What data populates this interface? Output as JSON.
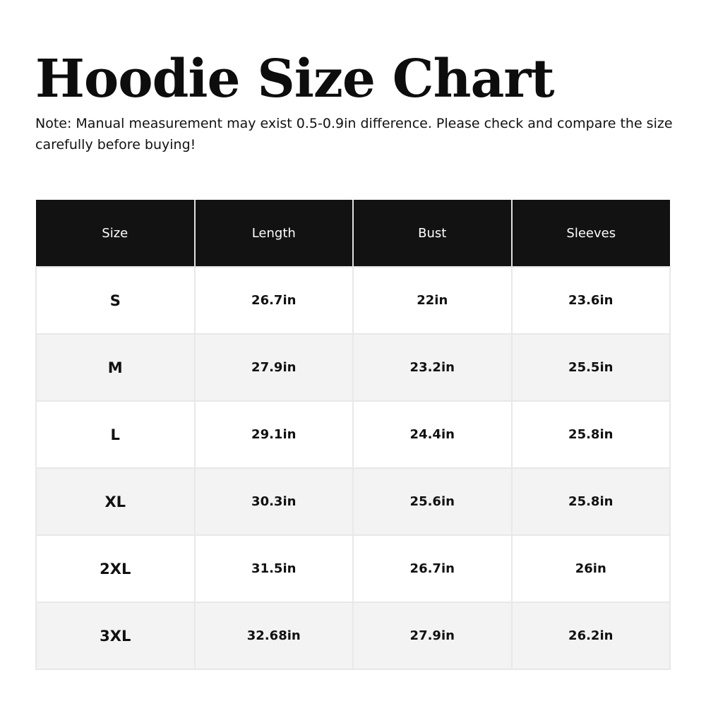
{
  "title": "Hoodie Size Chart",
  "note": "Note: Manual measurement may exist 0.5-0.9in difference. Please check and compare the size carefully before buying!",
  "table": {
    "headers": [
      "Size",
      "Length",
      "Bust",
      "Sleeves"
    ],
    "rows": [
      [
        "S",
        "26.7in",
        "22in",
        "23.6in"
      ],
      [
        "M",
        "27.9in",
        "23.2in",
        "25.5in"
      ],
      [
        "L",
        "29.1in",
        "24.4in",
        "25.8in"
      ],
      [
        "XL",
        "30.3in",
        "25.6in",
        "25.8in"
      ],
      [
        "2XL",
        "31.5in",
        "26.7in",
        "26in"
      ],
      [
        "3XL",
        "32.68in",
        "27.9in",
        "26.2in"
      ]
    ]
  },
  "colors": {
    "header_bg": "#121212",
    "alt_row_bg": "#f3f3f3"
  }
}
